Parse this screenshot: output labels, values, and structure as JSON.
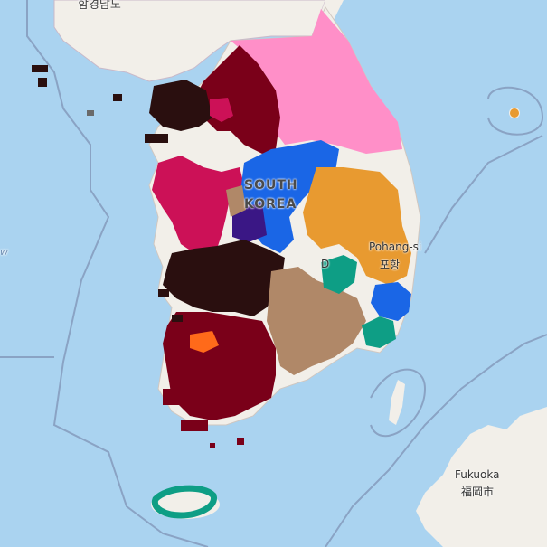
{
  "map": {
    "labels": {
      "north_top": "함경남도",
      "country_line1": "SOUTH",
      "country_line2": "KOREA",
      "pohang_en": "Pohang-si",
      "pohang_ko": "포항",
      "daegu_partial": "D",
      "fukuoka_en": "Fukuoka",
      "fukuoka_ja": "福岡市",
      "sea_west": "w"
    },
    "colors": {
      "sea": "#aad3f0",
      "land": "#f2efe9",
      "pink": "#ff8fc8",
      "maroon": "#7a0019",
      "dark_brown": "#2a0f0f",
      "crimson": "#cc1157",
      "blue": "#1a66e6",
      "orange": "#e89a30",
      "tan": "#b08868",
      "teal": "#0e9e85",
      "purple": "#3a1785",
      "bright_orange": "#ff6a1a"
    },
    "regions": [
      "gangwon-pink",
      "gyeonggi-north-maroon",
      "incheon-dark",
      "chungnam-crimson",
      "chungbuk-blue",
      "gyeongbuk-orange",
      "daejeon-purple",
      "jeonbuk-dark",
      "jeonnam-maroon",
      "gyeongnam-tan",
      "daegu-teal",
      "ulsan-blue",
      "busan-teal",
      "gwangju-orange",
      "jeju-teal",
      "ulleung-orange"
    ]
  }
}
